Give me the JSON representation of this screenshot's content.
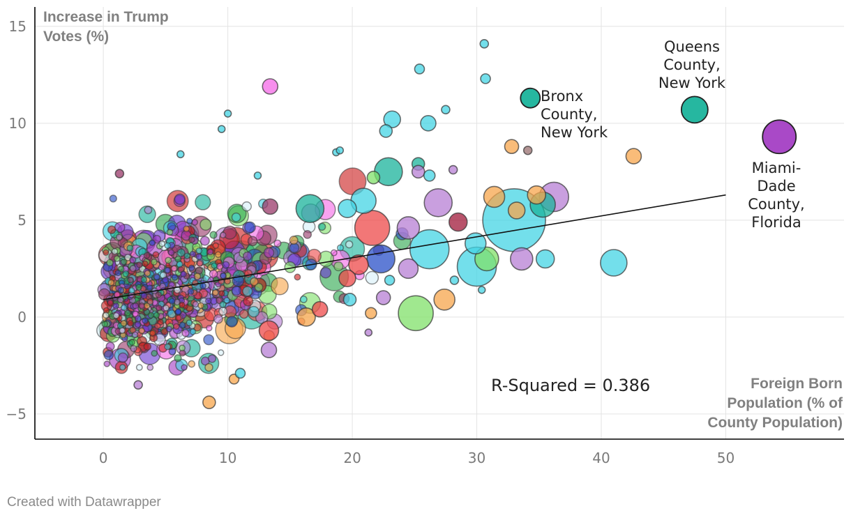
{
  "chart_data": {
    "type": "scatter",
    "title": "",
    "ylabel": "Increase in Trump Votes (%)",
    "xlabel": "Foreign Born Population (% of County Population)",
    "xlim": [
      -5.5,
      59.5
    ],
    "ylim": [
      -6.3,
      16
    ],
    "x_ticks": [
      0,
      10,
      20,
      30,
      40,
      50
    ],
    "y_ticks": [
      -5,
      0,
      5,
      10,
      15
    ],
    "x_tick_labels": [
      "0",
      "10",
      "20",
      "30",
      "40",
      "50"
    ],
    "y_tick_labels": [
      "−5",
      "0",
      "5",
      "10",
      "15"
    ],
    "grid": true,
    "annotation": "R-Squared = 0.386",
    "trendline": {
      "x": [
        0,
        50
      ],
      "y": [
        0.9,
        6.3
      ]
    },
    "labeled_points": [
      {
        "label_lines": [
          "Bronx",
          "County,",
          "New York"
        ],
        "x": 34.3,
        "y": 11.3,
        "size": 14,
        "color": "#1ab39b"
      },
      {
        "label_lines": [
          "Queens",
          "County,",
          "New York"
        ],
        "x": 47.5,
        "y": 10.7,
        "size": 19,
        "color": "#1ab39b"
      },
      {
        "label_lines": [
          "Miami-",
          "Dade",
          "County,",
          "Florida"
        ],
        "x": 54.3,
        "y": 9.3,
        "size": 24,
        "color": "#a43fc4"
      }
    ],
    "notable_points": [
      {
        "x": 33.0,
        "y": 5.0,
        "size": 45,
        "color": "#44d4e4"
      },
      {
        "x": 30.0,
        "y": 2.6,
        "size": 28,
        "color": "#44d4e4"
      },
      {
        "x": 25.1,
        "y": 0.2,
        "size": 25,
        "color": "#80e06a"
      },
      {
        "x": 41.0,
        "y": 2.8,
        "size": 19,
        "color": "#44d4e4"
      },
      {
        "x": 36.2,
        "y": 6.2,
        "size": 21,
        "color": "#b77fd4"
      },
      {
        "x": 35.3,
        "y": 5.8,
        "size": 18,
        "color": "#1ab39b"
      },
      {
        "x": 30.6,
        "y": 14.1,
        "size": 6,
        "color": "#44d4e4"
      },
      {
        "x": 25.4,
        "y": 12.8,
        "size": 7,
        "color": "#44d4e4"
      },
      {
        "x": 30.7,
        "y": 12.3,
        "size": 7,
        "color": "#44d4e4"
      },
      {
        "x": 13.4,
        "y": 11.9,
        "size": 11,
        "color": "#f46ae7"
      },
      {
        "x": 10.0,
        "y": 10.5,
        "size": 5,
        "color": "#44d4e4"
      },
      {
        "x": 9.5,
        "y": 9.7,
        "size": 5,
        "color": "#44d4e4"
      },
      {
        "x": 23.2,
        "y": 10.2,
        "size": 12,
        "color": "#44d4e4"
      },
      {
        "x": 26.1,
        "y": 10.0,
        "size": 11,
        "color": "#44d4e4"
      },
      {
        "x": 22.7,
        "y": 9.6,
        "size": 9,
        "color": "#44d4e4"
      },
      {
        "x": 27.5,
        "y": 10.7,
        "size": 6,
        "color": "#44d4e4"
      },
      {
        "x": 32.8,
        "y": 8.8,
        "size": 10,
        "color": "#f7a64c"
      },
      {
        "x": 34.1,
        "y": 8.6,
        "size": 6,
        "color": "#9a7070"
      },
      {
        "x": 42.6,
        "y": 8.3,
        "size": 11,
        "color": "#f7a64c"
      },
      {
        "x": 22.9,
        "y": 7.5,
        "size": 20,
        "color": "#1ab39b"
      },
      {
        "x": 31.4,
        "y": 6.2,
        "size": 15,
        "color": "#f7a64c"
      },
      {
        "x": 34.8,
        "y": 6.3,
        "size": 13,
        "color": "#f7a64c"
      },
      {
        "x": 33.2,
        "y": 5.5,
        "size": 12,
        "color": "#f7a64c"
      },
      {
        "x": 26.9,
        "y": 5.9,
        "size": 20,
        "color": "#b77fd4"
      },
      {
        "x": 28.5,
        "y": 4.9,
        "size": 13,
        "color": "#a01a3a"
      },
      {
        "x": 29.9,
        "y": 3.8,
        "size": 15,
        "color": "#44d4e4"
      },
      {
        "x": 30.8,
        "y": 3.0,
        "size": 17,
        "color": "#80e06a"
      },
      {
        "x": 33.6,
        "y": 3.0,
        "size": 16,
        "color": "#b77fd4"
      },
      {
        "x": 35.5,
        "y": 3.0,
        "size": 13,
        "color": "#44d4e4"
      },
      {
        "x": 27.4,
        "y": 0.9,
        "size": 15,
        "color": "#f7a64c"
      },
      {
        "x": 16.6,
        "y": 5.6,
        "size": 20,
        "color": "#1ab39b"
      },
      {
        "x": 21.6,
        "y": 4.6,
        "size": 25,
        "color": "#ee4a4a"
      },
      {
        "x": 22.3,
        "y": 3.0,
        "size": 20,
        "color": "#2a50c8"
      },
      {
        "x": 26.2,
        "y": 3.5,
        "size": 28,
        "color": "#44d4e4"
      },
      {
        "x": 20.9,
        "y": 6.0,
        "size": 18,
        "color": "#44d4e4"
      },
      {
        "x": 19.6,
        "y": 5.6,
        "size": 13,
        "color": "#44d4e4"
      },
      {
        "x": 24.5,
        "y": 4.6,
        "size": 16,
        "color": "#b77fd4"
      },
      {
        "x": 24.5,
        "y": 2.5,
        "size": 14,
        "color": "#b77fd4"
      },
      {
        "x": 19.6,
        "y": 2.0,
        "size": 12,
        "color": "#ee4a4a"
      },
      {
        "x": 20.5,
        "y": 2.7,
        "size": 14,
        "color": "#ee4a4a"
      },
      {
        "x": 17.4,
        "y": 0.4,
        "size": 11,
        "color": "#ee4a4a"
      },
      {
        "x": 16.3,
        "y": 0.0,
        "size": 13,
        "color": "#f7a64c"
      },
      {
        "x": 13.3,
        "y": -0.7,
        "size": 14,
        "color": "#ee4a4a"
      },
      {
        "x": 13.3,
        "y": -1.7,
        "size": 11,
        "color": "#b77fd4"
      },
      {
        "x": 8.5,
        "y": -4.4,
        "size": 9,
        "color": "#f7a64c"
      },
      {
        "x": 2.8,
        "y": -3.5,
        "size": 6,
        "color": "#b77fd4"
      },
      {
        "x": 10.5,
        "y": -3.2,
        "size": 7,
        "color": "#f7a64c"
      },
      {
        "x": 11.0,
        "y": -2.9,
        "size": 7,
        "color": "#44d4e4"
      },
      {
        "x": 13.4,
        "y": 5.7,
        "size": 11,
        "color": "#9a3a6a"
      },
      {
        "x": 6.2,
        "y": 8.4,
        "size": 5,
        "color": "#44d4e4"
      },
      {
        "x": 12.4,
        "y": 7.3,
        "size": 5,
        "color": "#44d4e4"
      },
      {
        "x": 18.7,
        "y": 8.5,
        "size": 5,
        "color": "#44d4e4"
      },
      {
        "x": 19.0,
        "y": 8.6,
        "size": 5,
        "color": "#44d4e4"
      },
      {
        "x": 28.1,
        "y": 7.6,
        "size": 6,
        "color": "#b77fd4"
      },
      {
        "x": 1.3,
        "y": 7.4,
        "size": 6,
        "color": "#9a3a6a"
      },
      {
        "x": 21.7,
        "y": 7.2,
        "size": 9,
        "color": "#80e06a"
      },
      {
        "x": 25.3,
        "y": 7.9,
        "size": 9,
        "color": "#1ab39b"
      },
      {
        "x": 25.3,
        "y": 7.5,
        "size": 9,
        "color": "#b77fd4"
      },
      {
        "x": 26.2,
        "y": 7.3,
        "size": 8,
        "color": "#44d4e4"
      },
      {
        "x": 21.3,
        "y": -0.8,
        "size": 5,
        "color": "#b77fd4"
      },
      {
        "x": 21.5,
        "y": 0.2,
        "size": 8,
        "color": "#f7a64c"
      },
      {
        "x": 22.5,
        "y": 1.0,
        "size": 10,
        "color": "#b77fd4"
      },
      {
        "x": 19.8,
        "y": 0.9,
        "size": 9,
        "color": "#44d4e4"
      },
      {
        "x": 28.2,
        "y": 1.9,
        "size": 6,
        "color": "#44d4e4"
      },
      {
        "x": 30.4,
        "y": 1.4,
        "size": 5,
        "color": "#44d4e4"
      },
      {
        "x": 23.0,
        "y": 1.9,
        "size": 7,
        "color": "#44d4e4"
      }
    ],
    "cluster_palette": [
      "#ee4a4a",
      "#2a50c8",
      "#80e06a",
      "#44d4e4",
      "#b77fd4",
      "#f7a64c",
      "#1ab39b",
      "#a43fc4",
      "#9a3a6a",
      "#f46ae7",
      "#d8f0f8",
      "#2fa84f",
      "#6a3ad0",
      "#cc2020"
    ]
  },
  "footer": {
    "credit": "Created with Datawrapper"
  }
}
